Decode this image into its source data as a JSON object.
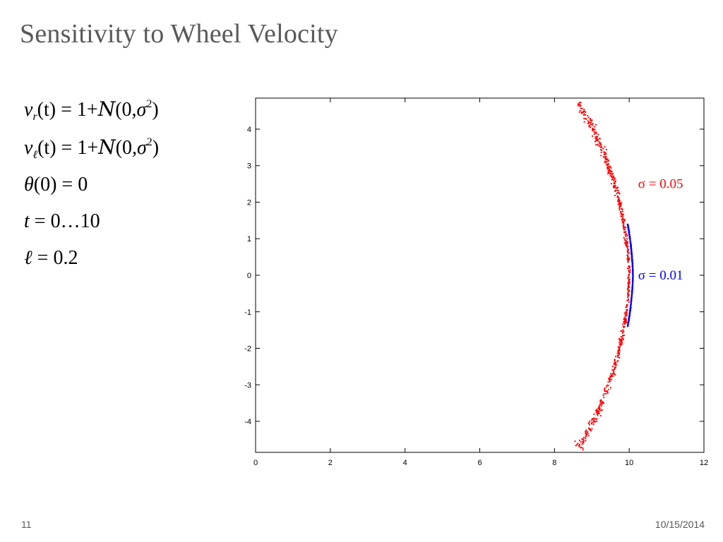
{
  "slide": {
    "title": "Sensitivity to Wheel Velocity",
    "page_number": "11",
    "date": "10/15/2014"
  },
  "equations": {
    "vr": {
      "lhs_var": "v",
      "lhs_sub": "r",
      "lhs_arg": "(t)",
      "op": "=",
      "rhs_a": "1+",
      "rhs_N": "N",
      "rhs_b": "(0,",
      "rhs_sigma": "σ",
      "rhs_sup": "2",
      "rhs_c": ")"
    },
    "vl": {
      "lhs_var": "v",
      "lhs_sub": "ℓ",
      "lhs_arg": "(t)",
      "op": "=",
      "rhs_a": "1+",
      "rhs_N": "N",
      "rhs_b": "(0,",
      "rhs_sigma": "σ",
      "rhs_sup": "2",
      "rhs_c": ")"
    },
    "theta": {
      "lhs": "θ",
      "arg": "(0)",
      "op": "=",
      "rhs": "0"
    },
    "time": {
      "lhs": "t",
      "op": "=",
      "rhs": "0…10"
    },
    "ell": {
      "lhs": "ℓ",
      "op": "=",
      "rhs": "0.2"
    }
  },
  "chart_data": {
    "type": "scatter",
    "xlim": [
      0,
      12
    ],
    "ylim": [
      -4.85,
      4.85
    ],
    "x_ticks": [
      0,
      2,
      4,
      6,
      8,
      10,
      12
    ],
    "y_ticks": [
      4,
      3,
      2,
      1,
      0,
      -1,
      -2,
      -3,
      -4
    ],
    "grid": false,
    "series": [
      {
        "color": "#ff0000",
        "radius": 10,
        "sigma": 0.05,
        "t_range": [
          -0.5,
          0.5
        ],
        "count": 700
      },
      {
        "color": "#0000ff",
        "radius": 10.1,
        "sigma": 0.01,
        "t_range": [
          -0.14,
          0.14
        ],
        "count": 500
      }
    ],
    "annotations": [
      {
        "label": "σ = 0.05",
        "color": "#ff0000",
        "x": 10.2,
        "y": 2.5
      },
      {
        "label": "σ = 0.01",
        "color": "#0000ff",
        "x": 10.2,
        "y": 0.0
      }
    ]
  }
}
